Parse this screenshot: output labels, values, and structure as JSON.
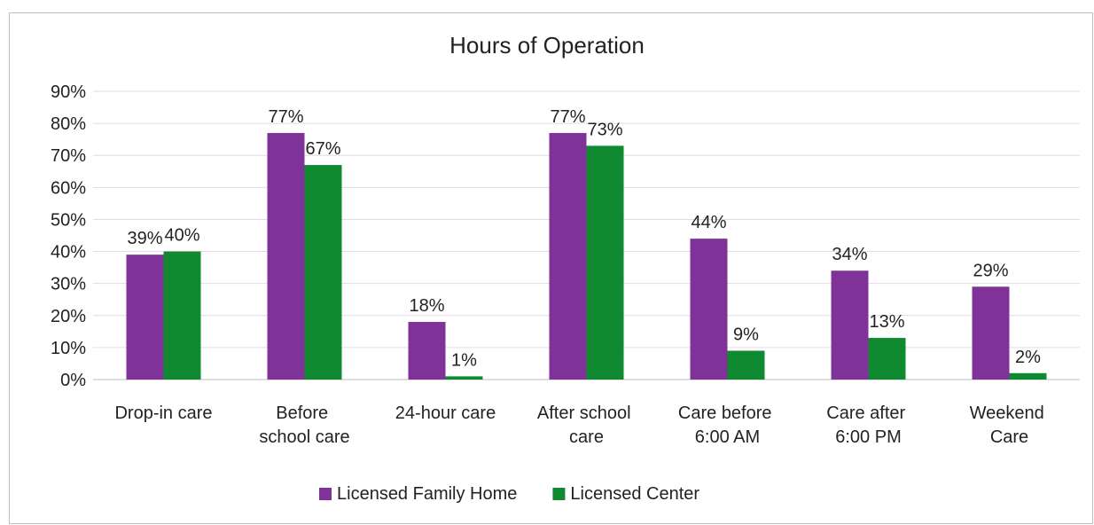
{
  "chart_data": {
    "type": "bar",
    "title": "Hours of Operation",
    "categories": [
      "Drop-in care",
      "Before\nschool care",
      "24-hour care",
      "After school\ncare",
      "Care before\n6:00 AM",
      "Care after\n6:00 PM",
      "Weekend\nCare"
    ],
    "series": [
      {
        "name": "Licensed Family Home",
        "color": "#7f3399",
        "values": [
          39,
          77,
          18,
          77,
          44,
          34,
          29
        ],
        "value_labels": [
          "39%",
          "77%",
          "18%",
          "77%",
          "44%",
          "34%",
          "29%"
        ]
      },
      {
        "name": "Licensed Center",
        "color": "#0f8a31",
        "values": [
          40,
          67,
          1,
          73,
          9,
          13,
          2
        ],
        "value_labels": [
          "40%",
          "67%",
          "1%",
          "73%",
          "9%",
          "13%",
          "2%"
        ]
      }
    ],
    "ylim": [
      0,
      90
    ],
    "yticks": [
      {
        "value": 0,
        "label": "0%"
      },
      {
        "value": 10,
        "label": "10%"
      },
      {
        "value": 20,
        "label": "20%"
      },
      {
        "value": 30,
        "label": "30%"
      },
      {
        "value": 40,
        "label": "40%"
      },
      {
        "value": 50,
        "label": "50%"
      },
      {
        "value": 60,
        "label": "60%"
      },
      {
        "value": 70,
        "label": "70%"
      },
      {
        "value": 80,
        "label": "80%"
      },
      {
        "value": 90,
        "label": "90%"
      }
    ],
    "grid": true,
    "legend": "bottom"
  }
}
